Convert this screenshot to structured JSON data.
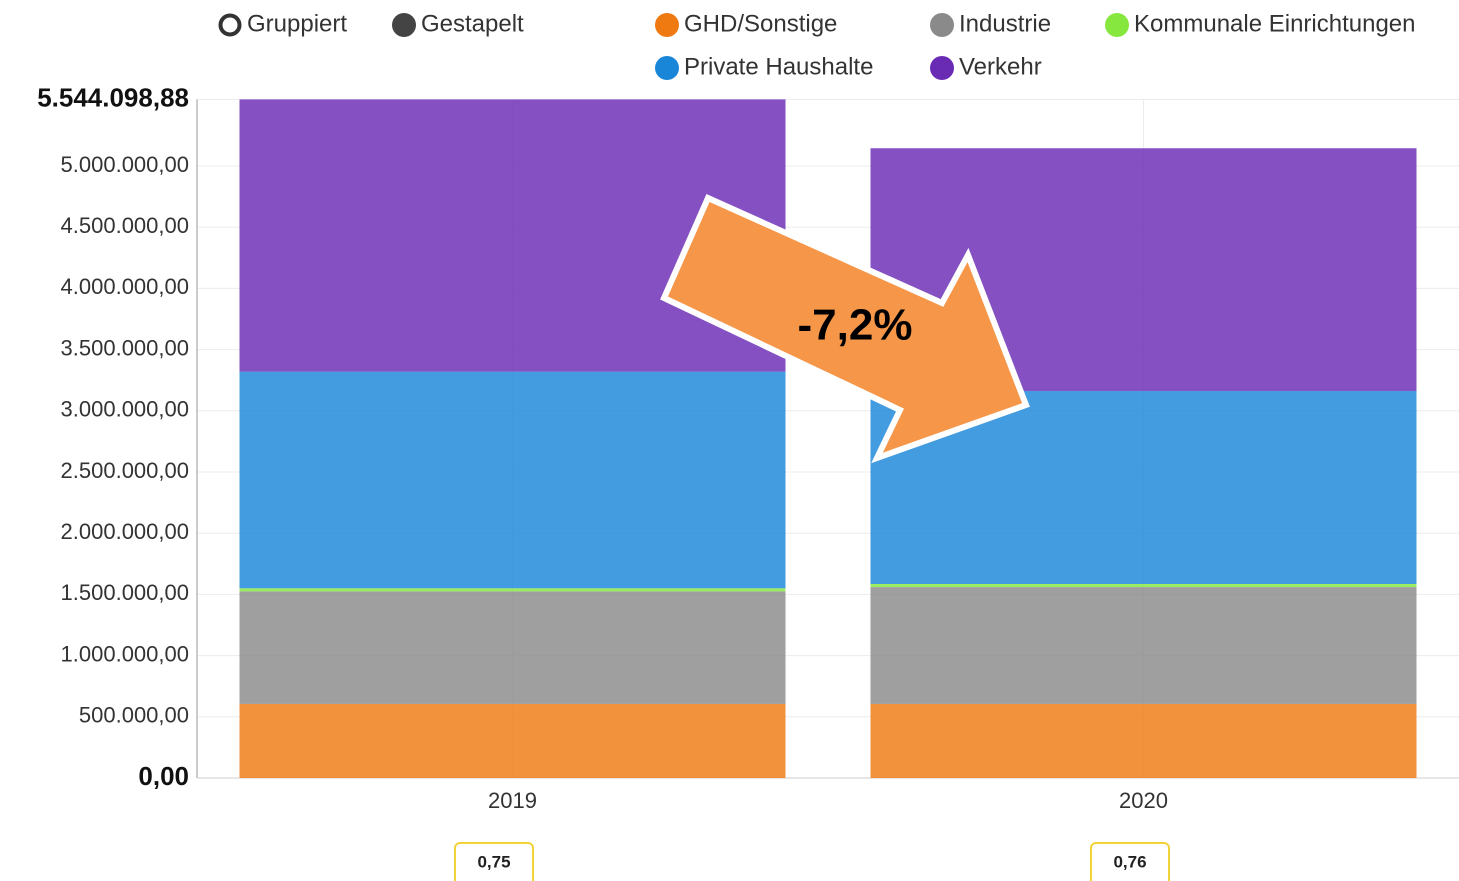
{
  "chart_data": {
    "type": "stacked_bar",
    "modes": [
      "Gruppiert",
      "Gestapelt"
    ],
    "categories": [
      "2019",
      "2020"
    ],
    "series": [
      {
        "name": "GHD/Sonstige",
        "color": "#f07a12",
        "values": [
          605000,
          605000
        ]
      },
      {
        "name": "Industrie",
        "color": "#8a8a8a",
        "values": [
          920000,
          955000
        ]
      },
      {
        "name": "Kommunale Einrichtungen",
        "color": "#86e83e",
        "values": [
          25000,
          25000
        ]
      },
      {
        "name": "Private Haushalte",
        "color": "#1a86d8",
        "values": [
          1770000,
          1577000
        ]
      },
      {
        "name": "Verkehr",
        "color": "#6a2bb4",
        "values": [
          2224098.88,
          1983000
        ]
      }
    ],
    "legend_order": [
      [
        0,
        1,
        2
      ],
      [
        3,
        4
      ]
    ],
    "ylim": [
      0,
      5544098.88
    ],
    "yticks": [
      {
        "value": 0,
        "label": "0,00"
      },
      {
        "value": 500000,
        "label": "500.000,00"
      },
      {
        "value": 1000000,
        "label": "1.000.000,00"
      },
      {
        "value": 1500000,
        "label": "1.500.000,00"
      },
      {
        "value": 2000000,
        "label": "2.000.000,00"
      },
      {
        "value": 2500000,
        "label": "2.500.000,00"
      },
      {
        "value": 3000000,
        "label": "3.000.000,00"
      },
      {
        "value": 3500000,
        "label": "3.500.000,00"
      },
      {
        "value": 4000000,
        "label": "4.000.000,00"
      },
      {
        "value": 4500000,
        "label": "4.500.000,00"
      },
      {
        "value": 5000000,
        "label": "5.000.000,00"
      },
      {
        "value": 5544098.88,
        "label": "5.544.098,88"
      }
    ],
    "grid": true,
    "annotation": "-7,2%",
    "category_badges": [
      "0,75",
      "0,76"
    ]
  }
}
